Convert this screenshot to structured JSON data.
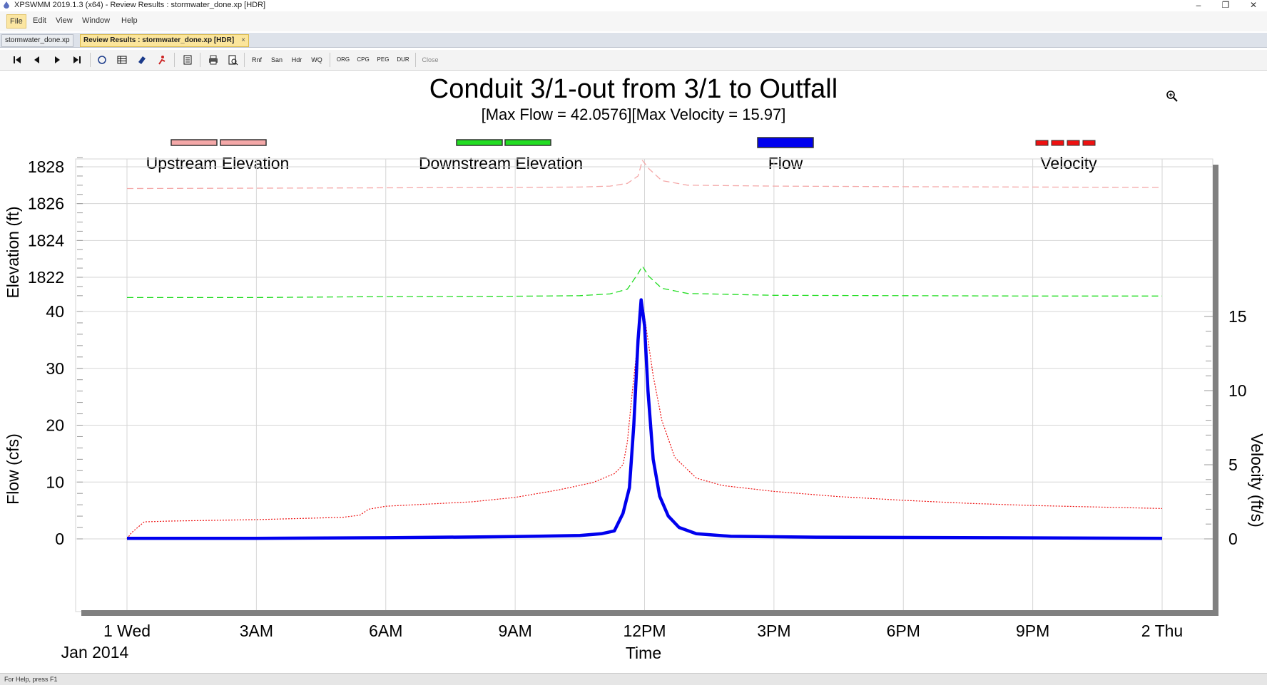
{
  "window": {
    "title": "XPSWMM 2019.1.3 (x64) - Review Results : stormwater_done.xp [HDR]",
    "minimize_glyph": "–",
    "restore_glyph": "❐",
    "close_glyph": "✕"
  },
  "menu": {
    "items": [
      {
        "label": "File",
        "active": true
      },
      {
        "label": "Edit"
      },
      {
        "label": "View"
      },
      {
        "label": "Window"
      },
      {
        "label": "Help"
      }
    ]
  },
  "tabs": [
    {
      "label": "stormwater_done.xp"
    },
    {
      "label": "Review Results : stormwater_done.xp [HDR]",
      "close": "×"
    }
  ],
  "toolbar": {
    "first_icon": "first-icon",
    "prev_icon": "prev-icon",
    "next_icon": "next-icon",
    "last_icon": "last-icon",
    "text_buttons": [
      "Rnf",
      "San",
      "Hdr",
      "WQ",
      "ORG",
      "CPG",
      "PEG",
      "DUR",
      "Close"
    ]
  },
  "zoom_icon": "magnifier-plus-icon",
  "status": {
    "text": "For Help, press F1"
  },
  "colors": {
    "upstream": "#f4a8a8",
    "downstream": "#22dd22",
    "flow": "#0000ee",
    "velocity": "#ee1111",
    "grid": "#d6d6d6",
    "axis_gray": "#808080"
  },
  "chart_data": {
    "type": "line",
    "title": "Conduit 3/1-out from 3/1 to Outfall",
    "subtitle": "[Max Flow = 42.0576][Max Velocity = 15.97]",
    "xlabel": "Time",
    "x_date_label": "Jan 2014",
    "x_ticks": [
      "1 Wed",
      "3AM",
      "6AM",
      "9AM",
      "12PM",
      "3PM",
      "6PM",
      "9PM",
      "2 Thu"
    ],
    "x_range_hours": [
      0,
      24
    ],
    "legend": [
      {
        "name": "Upstream Elevation",
        "style": "dashed"
      },
      {
        "name": "Downstream Elevation",
        "style": "dashed"
      },
      {
        "name": "Flow",
        "style": "solid-thick"
      },
      {
        "name": "Velocity",
        "style": "dotted"
      }
    ],
    "elevation_axis": {
      "label": "Elevation (ft)",
      "range": [
        1820,
        1828.5
      ],
      "ticks": [
        1822,
        1824,
        1826,
        1828
      ],
      "tick_labels": [
        "1822",
        "1824",
        "1826",
        "1828"
      ]
    },
    "flow_axis": {
      "label": "Flow (cfs)",
      "range": [
        0,
        42
      ],
      "ticks": [
        0,
        10,
        20,
        30,
        40
      ],
      "tick_labels": [
        "0",
        "10",
        "20",
        "30",
        "40"
      ]
    },
    "velocity_axis": {
      "label": "Velocity (ft/s)",
      "range": [
        0,
        16
      ],
      "ticks": [
        0,
        5,
        10,
        15
      ],
      "tick_labels": [
        "0",
        "5",
        "10",
        "15"
      ]
    },
    "series": [
      {
        "name": "Upstream Elevation",
        "axis": "elevation",
        "x": [
          0,
          3,
          6,
          9,
          10.5,
          11.2,
          11.6,
          11.85,
          11.95,
          12.1,
          12.4,
          13,
          15,
          18,
          21,
          24
        ],
        "y": [
          1826.82,
          1826.84,
          1826.86,
          1826.88,
          1826.9,
          1826.95,
          1827.1,
          1827.5,
          1828.35,
          1827.9,
          1827.25,
          1827.0,
          1826.95,
          1826.92,
          1826.9,
          1826.88
        ]
      },
      {
        "name": "Downstream Elevation",
        "axis": "elevation",
        "x": [
          0,
          3,
          6,
          9,
          10.5,
          11.2,
          11.6,
          11.85,
          11.95,
          12.1,
          12.4,
          13,
          15,
          18,
          21,
          24
        ],
        "y": [
          1820.9,
          1820.9,
          1820.95,
          1820.97,
          1821.0,
          1821.1,
          1821.35,
          1822.2,
          1822.6,
          1822.05,
          1821.4,
          1821.12,
          1821.02,
          1821.0,
          1820.98,
          1820.98
        ]
      },
      {
        "name": "Flow",
        "axis": "flow",
        "x": [
          0,
          3,
          6,
          9,
          10.5,
          11.0,
          11.3,
          11.5,
          11.65,
          11.75,
          11.85,
          11.92,
          12.0,
          12.08,
          12.2,
          12.35,
          12.55,
          12.8,
          13.2,
          14,
          16,
          20,
          24
        ],
        "y": [
          0.1,
          0.1,
          0.2,
          0.4,
          0.6,
          0.9,
          1.4,
          4.5,
          9.0,
          20.0,
          35.0,
          42.0576,
          37.5,
          26.0,
          14.0,
          7.5,
          4.0,
          2.0,
          0.9,
          0.45,
          0.3,
          0.2,
          0.1
        ]
      },
      {
        "name": "Velocity",
        "axis": "velocity",
        "x": [
          0,
          0.1,
          0.4,
          1,
          3,
          5,
          5.4,
          5.6,
          6,
          7,
          8,
          9,
          10,
          10.8,
          11.3,
          11.5,
          11.6,
          11.7,
          11.85,
          11.95,
          12.05,
          12.2,
          12.4,
          12.7,
          13.2,
          13.8,
          15,
          16.5,
          18,
          19.5,
          21,
          22.5,
          24
        ],
        "y": [
          0,
          0.4,
          1.15,
          1.2,
          1.3,
          1.45,
          1.6,
          2.0,
          2.2,
          2.35,
          2.5,
          2.8,
          3.3,
          3.8,
          4.4,
          5.0,
          6.5,
          9.5,
          13.5,
          15.97,
          14.0,
          11.0,
          8.0,
          5.5,
          4.1,
          3.6,
          3.2,
          2.85,
          2.6,
          2.4,
          2.25,
          2.15,
          2.05
        ]
      }
    ]
  }
}
